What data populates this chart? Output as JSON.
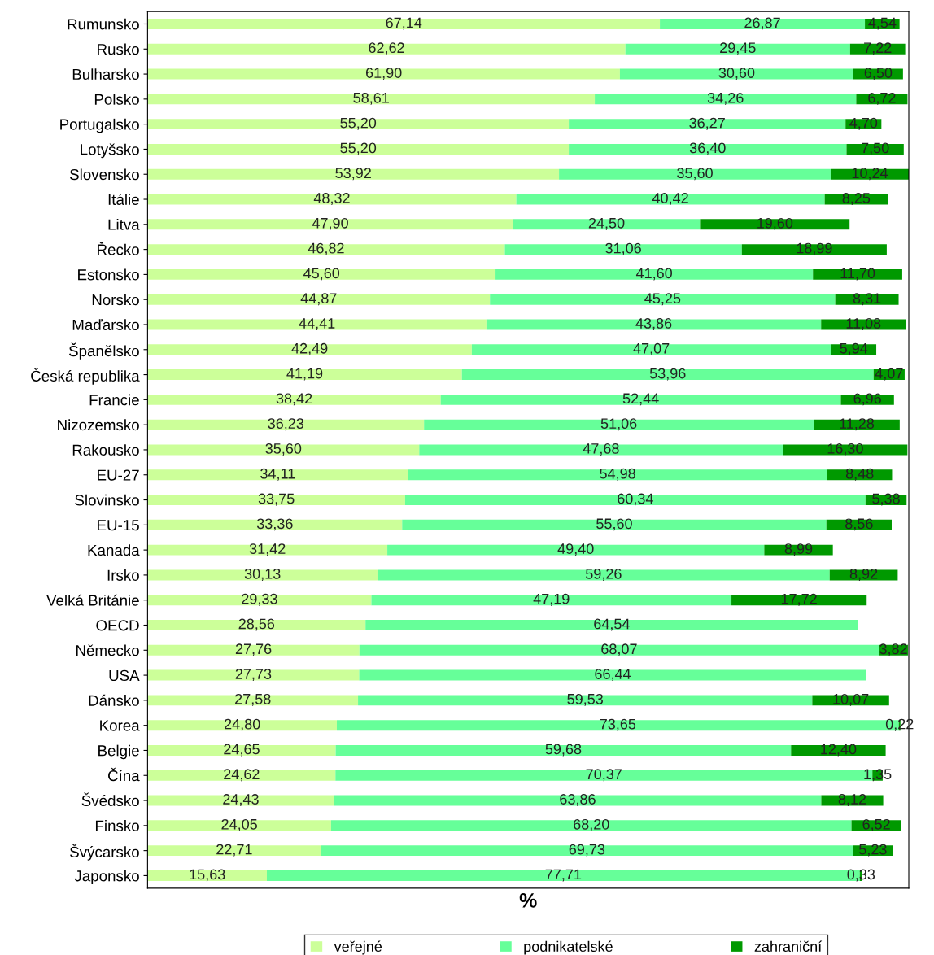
{
  "chart_data": {
    "type": "bar",
    "orientation": "horizontal",
    "stacked": true,
    "xlabel": "%",
    "tick_labels": "y",
    "grid": false,
    "legend": "bottom",
    "categories": [
      "Rumunsko",
      "Rusko",
      "Bulharsko",
      "Polsko",
      "Portugalsko",
      "Lotyšsko",
      "Slovensko",
      "Itálie",
      "Litva",
      "Řecko",
      "Estonsko",
      "Norsko",
      "Maďarsko",
      "Španělsko",
      "Česká republika",
      "Francie",
      "Nizozemsko",
      "Rakousko",
      "EU-27",
      "Slovinsko",
      "EU-15",
      "Kanada",
      "Irsko",
      "Velká Británie",
      "OECD",
      "Německo",
      "USA",
      "Dánsko",
      "Korea",
      "Belgie",
      "Čína",
      "Švédsko",
      "Finsko",
      "Švýcarsko",
      "Japonsko"
    ],
    "series": [
      {
        "name": "veřejné",
        "color": "#ccff99",
        "values": [
          67.14,
          62.62,
          61.9,
          58.61,
          55.2,
          55.2,
          53.92,
          48.32,
          47.9,
          46.82,
          45.6,
          44.87,
          44.41,
          42.49,
          41.19,
          38.42,
          36.23,
          35.6,
          34.11,
          33.75,
          33.36,
          31.42,
          30.13,
          29.33,
          28.56,
          27.76,
          27.73,
          27.58,
          24.8,
          24.65,
          24.62,
          24.43,
          24.05,
          22.71,
          15.63
        ],
        "value_labels": [
          "67,14",
          "62,62",
          "61,90",
          "58,61",
          "55,20",
          "55,20",
          "53,92",
          "48,32",
          "47,90",
          "46,82",
          "45,60",
          "44,87",
          "44,41",
          "42,49",
          "41,19",
          "38,42",
          "36,23",
          "35,60",
          "34,11",
          "33,75",
          "33,36",
          "31,42",
          "30,13",
          "29,33",
          "28,56",
          "27,76",
          "27,73",
          "27,58",
          "24,80",
          "24,65",
          "24,62",
          "24,43",
          "24,05",
          "22,71",
          "15,63"
        ]
      },
      {
        "name": "podnikatelské",
        "color": "#66ff99",
        "values": [
          26.87,
          29.45,
          30.6,
          34.26,
          36.27,
          36.4,
          35.6,
          40.42,
          24.5,
          31.06,
          41.6,
          45.25,
          43.86,
          47.07,
          53.96,
          52.44,
          51.06,
          47.68,
          54.98,
          60.34,
          55.6,
          49.4,
          59.26,
          47.19,
          64.54,
          68.07,
          66.44,
          59.53,
          73.65,
          59.68,
          70.37,
          63.86,
          68.2,
          69.73,
          77.71
        ],
        "value_labels": [
          "26,87",
          "29,45",
          "30,60",
          "34,26",
          "36,27",
          "36,40",
          "35,60",
          "40,42",
          "24,50",
          "31,06",
          "41,60",
          "45,25",
          "43,86",
          "47,07",
          "53,96",
          "52,44",
          "51,06",
          "47,68",
          "54,98",
          "60,34",
          "55,60",
          "49,40",
          "59,26",
          "47,19",
          "64,54",
          "68,07",
          "66,44",
          "59,53",
          "73,65",
          "59,68",
          "70,37",
          "63,86",
          "68,20",
          "69,73",
          "77,71"
        ]
      },
      {
        "name": "zahraniční",
        "color": "#009900",
        "values": [
          4.54,
          7.22,
          6.5,
          6.72,
          4.7,
          7.5,
          10.24,
          8.25,
          19.6,
          18.99,
          11.7,
          8.31,
          11.08,
          5.94,
          4.07,
          6.96,
          11.28,
          16.3,
          8.48,
          5.38,
          8.56,
          8.99,
          8.92,
          17.72,
          null,
          3.82,
          null,
          10.07,
          0.22,
          12.4,
          1.35,
          8.12,
          6.52,
          5.23,
          0.33
        ],
        "value_labels": [
          "4,54",
          "7,22",
          "6,50",
          "6,72",
          "4,70",
          "7,50",
          "10,24",
          "8,25",
          "19,60",
          "18,99",
          "11,70",
          "8,31",
          "11,08",
          "5,94",
          "4,07",
          "6,96",
          "11,28",
          "16,30",
          "8,48",
          "5,38",
          "8,56",
          "8,99",
          "8,92",
          "17,72",
          null,
          "3,82",
          null,
          "10,07",
          "0,22",
          "12,40",
          "1,35",
          "8,12",
          "6,52",
          "5,23",
          "0,33"
        ]
      }
    ]
  }
}
